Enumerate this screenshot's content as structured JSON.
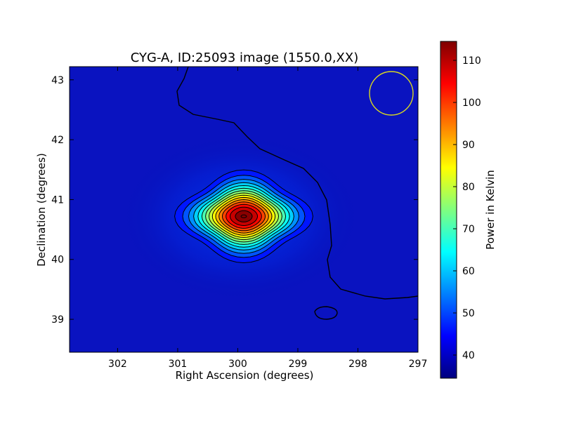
{
  "chart_data": {
    "type": "heatmap",
    "title": "CYG-A, ID:25093 image (1550.0,XX)",
    "xlabel": "Right Ascension (degrees)",
    "ylabel": "Declination (degrees)",
    "xlim": [
      302.8,
      297.0
    ],
    "ylim": [
      38.45,
      43.22
    ],
    "x_ticks": [
      302,
      301,
      300,
      299,
      298,
      297
    ],
    "y_ticks": [
      39,
      40,
      41,
      42,
      43
    ],
    "colorbar": {
      "label": "Power in Kelvin",
      "range": [
        34.5,
        114.5
      ],
      "ticks": [
        40,
        50,
        60,
        70,
        80,
        90,
        100,
        110
      ],
      "colormap": "jet"
    },
    "source": {
      "ra": 299.9,
      "dec": 40.72,
      "peak": 114.5,
      "background": 36,
      "sigma_ra": 0.42,
      "sigma_dec": 0.31
    },
    "beam_circle": {
      "ra": 297.5,
      "dec": 42.75,
      "radius_deg": 0.36,
      "color": "#d8d820"
    },
    "grid": false
  }
}
